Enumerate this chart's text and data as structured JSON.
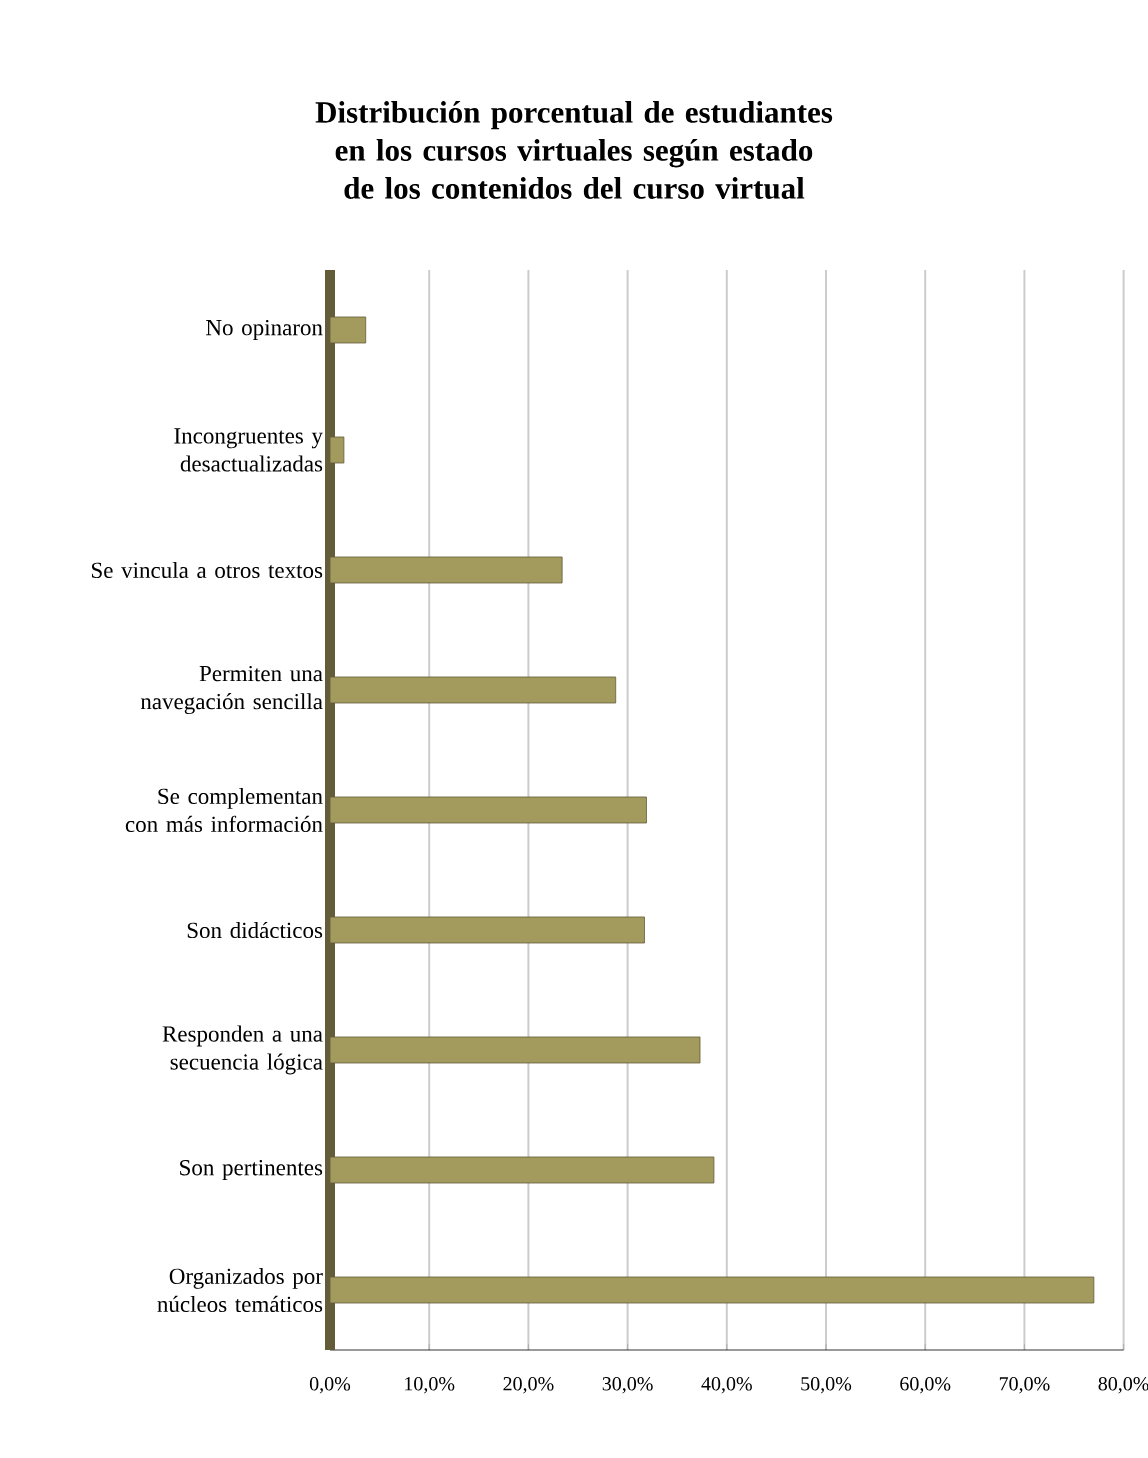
{
  "chart_data": {
    "type": "bar",
    "orientation": "horizontal",
    "title": "Distribución porcentual de estudiantes en los cursos virtuales según estado de los contenidos del curso virtual",
    "categories": [
      "No opinaron",
      "Incongruentes y desactualizadas",
      "Se vincula a otros textos",
      "Permiten una navegación sencilla",
      "Se complementan con más información",
      "Son didácticos",
      "Responden a una secuencia lógica",
      "Son pertinentes",
      "Organizados por núcleos temáticos"
    ],
    "values": [
      3.6,
      1.4,
      23.4,
      28.8,
      31.9,
      31.7,
      37.3,
      38.7,
      77.0
    ],
    "color": "#a39a5e",
    "xlim": [
      0,
      80
    ],
    "xticks": [
      {
        "value": 0,
        "label": "0,0%"
      },
      {
        "value": 10,
        "label": "10,0%"
      },
      {
        "value": 20,
        "label": "20,0%"
      },
      {
        "value": 30,
        "label": "30,0%"
      },
      {
        "value": 40,
        "label": "40,0%"
      },
      {
        "value": 50,
        "label": "50,0%"
      },
      {
        "value": 60,
        "label": "60,0%"
      },
      {
        "value": 70,
        "label": "70,0%"
      },
      {
        "value": 80,
        "label": "80,0%"
      }
    ],
    "grid": "x"
  }
}
